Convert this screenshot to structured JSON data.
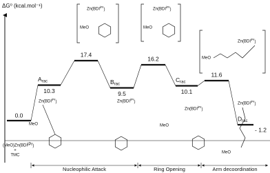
{
  "chart_data": {
    "type": "energy_profile",
    "y_label": "ΔG⁰ (kcal.mol⁻¹)",
    "categories": [
      "(MeO)Zn(BDI",
      "A",
      null,
      "B",
      null,
      "C",
      null,
      "D"
    ],
    "start_suffix": ")",
    "start_sup": "iPr",
    "start_extra": [
      "+",
      "TMC"
    ],
    "state_subscript": "rac",
    "values": [
      0.0,
      10.3,
      17.4,
      9.5,
      16.2,
      10.1,
      11.6,
      -1.2
    ],
    "value_labels": [
      "0.0",
      "10.3",
      "17.4",
      "9.5",
      "16.2",
      "10.1",
      "11.6",
      "- 1.2"
    ],
    "ylim": [
      -5,
      31
    ],
    "zn_label": "Zn(BDI",
    "zn_sup": "iPr",
    "zn_close": ")",
    "meo": "MeO",
    "phases": [
      "Nucleophilic Attack",
      "Ring Opening",
      "Arm decoordination"
    ]
  }
}
